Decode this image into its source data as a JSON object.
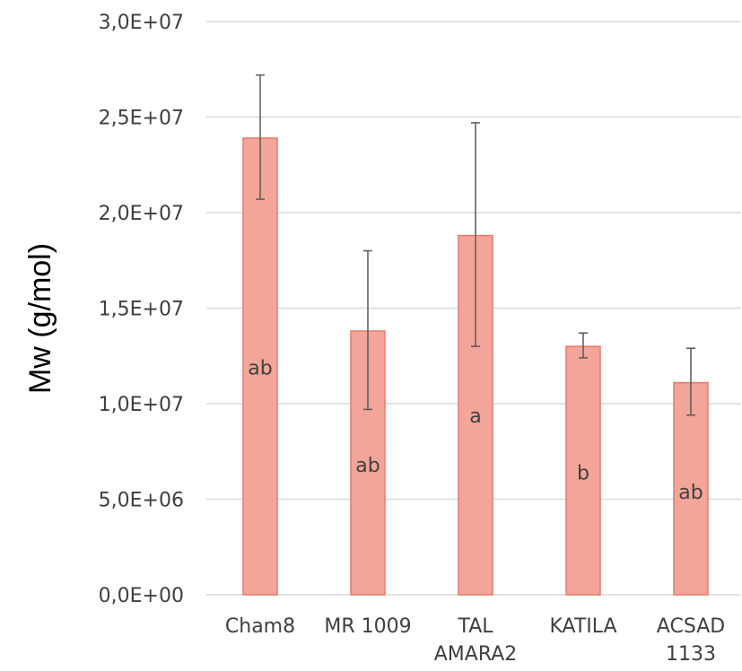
{
  "chart_data": {
    "type": "bar",
    "ylabel": "Mw (g/mol)",
    "xlabel": "",
    "ylim": [
      0,
      30000000
    ],
    "ytick_values": [
      0,
      5000000,
      10000000,
      15000000,
      20000000,
      25000000,
      30000000
    ],
    "ytick_labels": [
      "0,0E+00",
      "5,0E+06",
      "1,0E+07",
      "1,5E+07",
      "2,0E+07",
      "2,5E+07",
      "3,0E+07"
    ],
    "grid": true,
    "categories": [
      [
        "Cham8"
      ],
      [
        "MR 1009"
      ],
      [
        "TAL",
        "AMARA2"
      ],
      [
        "KATILA"
      ],
      [
        "ACSAD",
        "1133"
      ]
    ],
    "values": [
      23900000,
      13800000,
      18800000,
      13000000,
      11100000
    ],
    "error_low": [
      20700000,
      9700000,
      13000000,
      12400000,
      9400000
    ],
    "error_high": [
      27200000,
      18000000,
      24700000,
      13700000,
      12900000
    ],
    "bar_labels": [
      "ab",
      "ab",
      "a",
      "b",
      "ab"
    ],
    "bar_label_values": [
      11900000,
      6800000,
      9400000,
      6400000,
      5400000
    ],
    "colors": {
      "bar_fill": "#f2a598",
      "bar_stroke": "#e8796a",
      "grid": "#d9d9d9",
      "error": "#595959"
    }
  }
}
